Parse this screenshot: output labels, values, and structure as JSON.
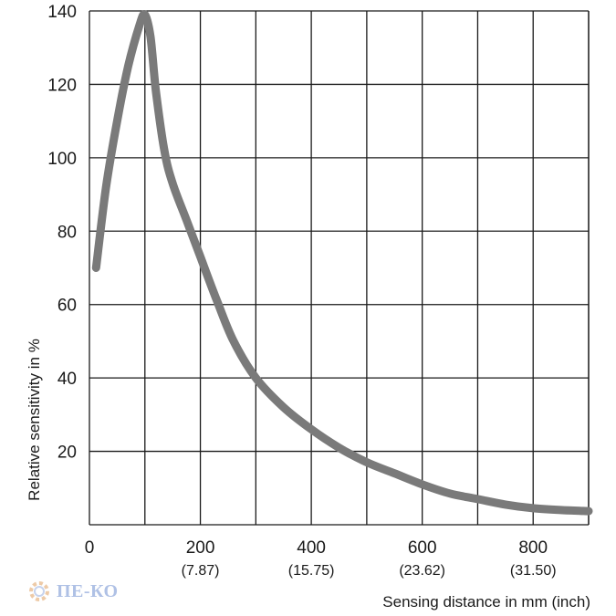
{
  "chart_data": {
    "type": "line",
    "xlabel": "Sensing distance in mm (inch)",
    "ylabel": "Relative sensitivity in %",
    "xlim": [
      0,
      900
    ],
    "ylim": [
      0,
      140
    ],
    "grid": true,
    "x_ticks": [
      {
        "value": 0,
        "label": "0",
        "sub": ""
      },
      {
        "value": 200,
        "label": "200",
        "sub": "(7.87)"
      },
      {
        "value": 400,
        "label": "400",
        "sub": "(15.75)"
      },
      {
        "value": 600,
        "label": "600",
        "sub": "(23.62)"
      },
      {
        "value": 800,
        "label": "800",
        "sub": "(31.50)"
      }
    ],
    "y_ticks": [
      "140",
      "120",
      "100",
      "80",
      "60",
      "40",
      "20"
    ],
    "series": [
      {
        "color": "#7a7a7a",
        "x": [
          12,
          30,
          50,
          70,
          90,
          100,
          110,
          120,
          135,
          150,
          175,
          200,
          230,
          260,
          300,
          350,
          400,
          450,
          500,
          550,
          600,
          650,
          700,
          750,
          800,
          850,
          900
        ],
        "y": [
          70,
          92,
          110,
          125,
          136,
          139,
          133,
          118,
          102,
          93,
          83,
          73,
          61,
          50,
          40,
          32,
          26,
          21,
          17,
          14,
          11,
          8.5,
          7,
          5.5,
          4.5,
          4,
          3.7
        ]
      }
    ]
  },
  "watermark": {
    "text": "ПЕ-КО",
    "icon": "gear-icon"
  }
}
